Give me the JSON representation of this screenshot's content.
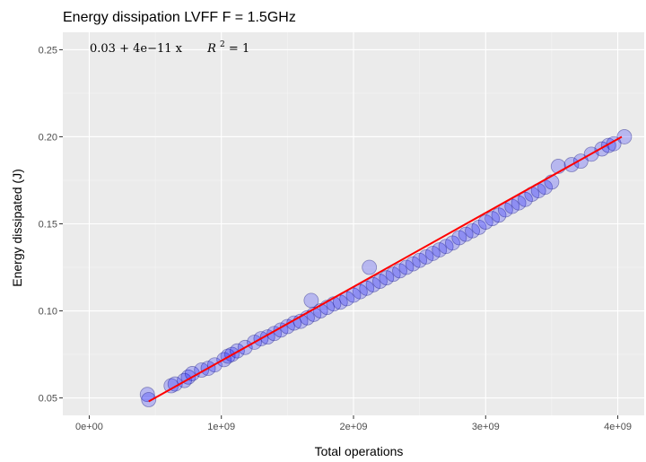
{
  "chart_data": {
    "type": "scatter",
    "title": "Energy dissipation LVFF F = 1.5GHz",
    "xlabel": "Total operations",
    "ylabel": "Energy dissipated (J)",
    "xlim": [
      -200000000.0,
      4200000000.0
    ],
    "ylim": [
      0.04,
      0.26
    ],
    "x_ticks": [
      0,
      1000000000.0,
      2000000000.0,
      3000000000.0,
      4000000000.0
    ],
    "x_tick_labels": [
      "0e+00",
      "1e+09",
      "2e+09",
      "3e+09",
      "4e+09"
    ],
    "y_ticks": [
      0.05,
      0.1,
      0.15,
      0.2,
      0.25
    ],
    "y_tick_labels": [
      "0.05",
      "0.10",
      "0.15",
      "0.20",
      "0.25"
    ],
    "grid": true,
    "annotation": {
      "equation": "0.03 + 4e−11 x",
      "r2_label": "R",
      "r2_exp": "2",
      "r2_value": " = 1"
    },
    "fit_line": {
      "x": [
        450000000.0,
        4030000000.0
      ],
      "y": [
        0.048,
        0.2
      ],
      "color": "#ff0000"
    },
    "point_color": "#0000ff",
    "points": [
      [
        440000000.0,
        0.052
      ],
      [
        450000000.0,
        0.049
      ],
      [
        620000000.0,
        0.057
      ],
      [
        650000000.0,
        0.058
      ],
      [
        720000000.0,
        0.06
      ],
      [
        750000000.0,
        0.062
      ],
      [
        780000000.0,
        0.064
      ],
      [
        850000000.0,
        0.066
      ],
      [
        900000000.0,
        0.067
      ],
      [
        950000000.0,
        0.069
      ],
      [
        1020000000.0,
        0.072
      ],
      [
        1050000000.0,
        0.074
      ],
      [
        1080000000.0,
        0.075
      ],
      [
        1120000000.0,
        0.077
      ],
      [
        1180000000.0,
        0.079
      ],
      [
        1250000000.0,
        0.082
      ],
      [
        1300000000.0,
        0.084
      ],
      [
        1350000000.0,
        0.085
      ],
      [
        1400000000.0,
        0.087
      ],
      [
        1450000000.0,
        0.089
      ],
      [
        1500000000.0,
        0.091
      ],
      [
        1550000000.0,
        0.093
      ],
      [
        1600000000.0,
        0.094
      ],
      [
        1650000000.0,
        0.096
      ],
      [
        1700000000.0,
        0.098
      ],
      [
        1680000000.0,
        0.106
      ],
      [
        1750000000.0,
        0.1
      ],
      [
        1800000000.0,
        0.102
      ],
      [
        1850000000.0,
        0.104
      ],
      [
        1900000000.0,
        0.105
      ],
      [
        1950000000.0,
        0.107
      ],
      [
        2000000000.0,
        0.109
      ],
      [
        2050000000.0,
        0.111
      ],
      [
        2100000000.0,
        0.113
      ],
      [
        2120000000.0,
        0.125
      ],
      [
        2150000000.0,
        0.115
      ],
      [
        2200000000.0,
        0.117
      ],
      [
        2250000000.0,
        0.119
      ],
      [
        2300000000.0,
        0.121
      ],
      [
        2350000000.0,
        0.123
      ],
      [
        2400000000.0,
        0.125
      ],
      [
        2450000000.0,
        0.127
      ],
      [
        2500000000.0,
        0.129
      ],
      [
        2550000000.0,
        0.131
      ],
      [
        2600000000.0,
        0.133
      ],
      [
        2650000000.0,
        0.135
      ],
      [
        2700000000.0,
        0.137
      ],
      [
        2750000000.0,
        0.139
      ],
      [
        2800000000.0,
        0.142
      ],
      [
        2850000000.0,
        0.144
      ],
      [
        2900000000.0,
        0.146
      ],
      [
        2950000000.0,
        0.148
      ],
      [
        3000000000.0,
        0.151
      ],
      [
        3050000000.0,
        0.153
      ],
      [
        3100000000.0,
        0.155
      ],
      [
        3150000000.0,
        0.158
      ],
      [
        3200000000.0,
        0.16
      ],
      [
        3250000000.0,
        0.162
      ],
      [
        3300000000.0,
        0.164
      ],
      [
        3350000000.0,
        0.167
      ],
      [
        3400000000.0,
        0.169
      ],
      [
        3450000000.0,
        0.171
      ],
      [
        3500000000.0,
        0.174
      ],
      [
        3550000000.0,
        0.183
      ],
      [
        3650000000.0,
        0.184
      ],
      [
        3720000000.0,
        0.186
      ],
      [
        3800000000.0,
        0.19
      ],
      [
        3880000000.0,
        0.193
      ],
      [
        3930000000.0,
        0.195
      ],
      [
        3970000000.0,
        0.196
      ],
      [
        4050000000.0,
        0.2
      ]
    ]
  }
}
